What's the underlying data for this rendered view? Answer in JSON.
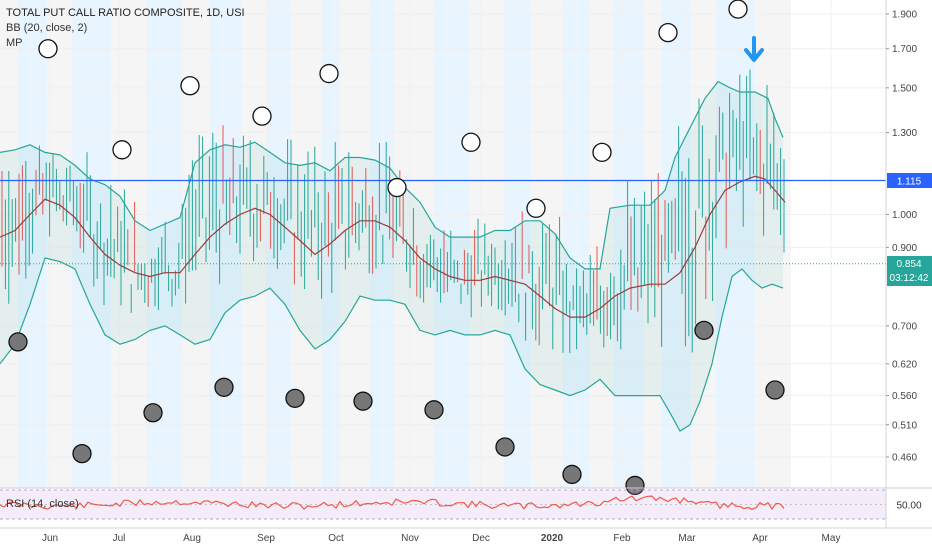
{
  "legend": {
    "title": "TOTAL PUT CALL RATIO COMPOSITE, 1D, USI",
    "bb": "BB (20, close, 2)",
    "mp": "MP"
  },
  "rsi_label": "RSI (14, close)",
  "colors": {
    "band": "#26a69a",
    "basis": "#9c3b3b",
    "bar_up": "#26a69a",
    "bar_down": "#ef5350",
    "hline": "#2962ff",
    "last_badge": "#26a69a",
    "rsi_line": "#f05a4a",
    "arrow": "#2196f3"
  },
  "badges": {
    "hline_value": "1.115",
    "last_value": "0.854",
    "countdown": "03:12:42",
    "rsi_value": "50.00"
  },
  "chart_data": {
    "type": "bar",
    "x_labels": [
      "Jun",
      "Jul",
      "Aug",
      "Sep",
      "Oct",
      "Nov",
      "Dec",
      "2020",
      "Feb",
      "Mar",
      "Apr",
      "May"
    ],
    "y_ticks": [
      "1.900",
      "1.700",
      "1.500",
      "1.300",
      "1.000",
      "0.900",
      "0.700",
      "0.620",
      "0.560",
      "0.510",
      "0.460"
    ],
    "y_log_scale": true,
    "series": [
      {
        "name": "BB upper",
        "values": [
          [
            0,
            1.22
          ],
          [
            15,
            1.23
          ],
          [
            30,
            1.25
          ],
          [
            45,
            1.22
          ],
          [
            60,
            1.21
          ],
          [
            75,
            1.17
          ],
          [
            90,
            1.12
          ],
          [
            105,
            1.1
          ],
          [
            120,
            1.06
          ],
          [
            135,
            0.98
          ],
          [
            150,
            0.95
          ],
          [
            165,
            0.97
          ],
          [
            180,
            0.99
          ],
          [
            195,
            1.18
          ],
          [
            210,
            1.23
          ],
          [
            225,
            1.25
          ],
          [
            240,
            1.24
          ],
          [
            255,
            1.26
          ],
          [
            270,
            1.22
          ],
          [
            285,
            1.18
          ],
          [
            300,
            1.17
          ],
          [
            315,
            1.18
          ],
          [
            330,
            1.15
          ],
          [
            345,
            1.2
          ],
          [
            360,
            1.2
          ],
          [
            375,
            1.19
          ],
          [
            390,
            1.16
          ],
          [
            405,
            1.09
          ],
          [
            420,
            1.04
          ],
          [
            435,
            0.96
          ],
          [
            450,
            0.93
          ],
          [
            465,
            0.93
          ],
          [
            480,
            0.93
          ],
          [
            495,
            0.95
          ],
          [
            510,
            0.95
          ],
          [
            525,
            0.98
          ],
          [
            540,
            0.98
          ],
          [
            555,
            0.94
          ],
          [
            570,
            0.87
          ],
          [
            585,
            0.84
          ],
          [
            600,
            0.84
          ],
          [
            610,
            1.02
          ],
          [
            630,
            1.03
          ],
          [
            650,
            1.03
          ],
          [
            665,
            1.08
          ],
          [
            675,
            1.2
          ],
          [
            690,
            1.32
          ],
          [
            705,
            1.45
          ],
          [
            718,
            1.53
          ],
          [
            730,
            1.5
          ],
          [
            740,
            1.48
          ],
          [
            755,
            1.48
          ],
          [
            768,
            1.45
          ],
          [
            775,
            1.36
          ],
          [
            783,
            1.28
          ]
        ]
      },
      {
        "name": "BB basis",
        "values": [
          [
            0,
            0.93
          ],
          [
            15,
            0.95
          ],
          [
            30,
            1.0
          ],
          [
            45,
            1.05
          ],
          [
            60,
            1.03
          ],
          [
            75,
            0.99
          ],
          [
            90,
            0.93
          ],
          [
            105,
            0.88
          ],
          [
            120,
            0.85
          ],
          [
            135,
            0.83
          ],
          [
            150,
            0.82
          ],
          [
            165,
            0.83
          ],
          [
            180,
            0.83
          ],
          [
            195,
            0.88
          ],
          [
            210,
            0.93
          ],
          [
            225,
            0.97
          ],
          [
            240,
            1.0
          ],
          [
            255,
            1.02
          ],
          [
            270,
            1.0
          ],
          [
            285,
            0.96
          ],
          [
            300,
            0.92
          ],
          [
            315,
            0.88
          ],
          [
            330,
            0.91
          ],
          [
            345,
            0.95
          ],
          [
            360,
            0.98
          ],
          [
            375,
            0.98
          ],
          [
            390,
            0.96
          ],
          [
            405,
            0.92
          ],
          [
            420,
            0.87
          ],
          [
            435,
            0.84
          ],
          [
            450,
            0.82
          ],
          [
            465,
            0.81
          ],
          [
            480,
            0.81
          ],
          [
            495,
            0.82
          ],
          [
            510,
            0.81
          ],
          [
            525,
            0.8
          ],
          [
            540,
            0.77
          ],
          [
            555,
            0.74
          ],
          [
            570,
            0.72
          ],
          [
            585,
            0.72
          ],
          [
            600,
            0.74
          ],
          [
            615,
            0.77
          ],
          [
            630,
            0.79
          ],
          [
            650,
            0.8
          ],
          [
            665,
            0.8
          ],
          [
            680,
            0.83
          ],
          [
            695,
            0.9
          ],
          [
            710,
            1.0
          ],
          [
            725,
            1.08
          ],
          [
            740,
            1.11
          ],
          [
            755,
            1.13
          ],
          [
            765,
            1.12
          ],
          [
            775,
            1.08
          ],
          [
            785,
            1.04
          ]
        ]
      },
      {
        "name": "BB lower",
        "values": [
          [
            0,
            0.62
          ],
          [
            15,
            0.66
          ],
          [
            30,
            0.75
          ],
          [
            45,
            0.87
          ],
          [
            60,
            0.86
          ],
          [
            75,
            0.84
          ],
          [
            90,
            0.75
          ],
          [
            105,
            0.68
          ],
          [
            120,
            0.66
          ],
          [
            135,
            0.67
          ],
          [
            150,
            0.69
          ],
          [
            165,
            0.7
          ],
          [
            180,
            0.68
          ],
          [
            195,
            0.66
          ],
          [
            210,
            0.67
          ],
          [
            225,
            0.73
          ],
          [
            240,
            0.76
          ],
          [
            255,
            0.77
          ],
          [
            270,
            0.79
          ],
          [
            285,
            0.75
          ],
          [
            300,
            0.69
          ],
          [
            315,
            0.65
          ],
          [
            330,
            0.67
          ],
          [
            345,
            0.71
          ],
          [
            360,
            0.77
          ],
          [
            375,
            0.76
          ],
          [
            390,
            0.76
          ],
          [
            405,
            0.75
          ],
          [
            420,
            0.69
          ],
          [
            435,
            0.68
          ],
          [
            450,
            0.69
          ],
          [
            465,
            0.68
          ],
          [
            480,
            0.68
          ],
          [
            495,
            0.69
          ],
          [
            510,
            0.68
          ],
          [
            525,
            0.61
          ],
          [
            540,
            0.58
          ],
          [
            555,
            0.57
          ],
          [
            570,
            0.56
          ],
          [
            585,
            0.57
          ],
          [
            600,
            0.59
          ],
          [
            615,
            0.56
          ],
          [
            630,
            0.56
          ],
          [
            645,
            0.56
          ],
          [
            660,
            0.56
          ],
          [
            670,
            0.53
          ],
          [
            680,
            0.5
          ],
          [
            690,
            0.51
          ],
          [
            700,
            0.55
          ],
          [
            712,
            0.62
          ],
          [
            722,
            0.72
          ],
          [
            732,
            0.82
          ],
          [
            742,
            0.84
          ],
          [
            752,
            0.81
          ],
          [
            762,
            0.79
          ],
          [
            772,
            0.8
          ],
          [
            783,
            0.79
          ]
        ]
      }
    ],
    "hline": 1.115,
    "last_value": 0.854,
    "circles_hollow": [
      [
        48,
        1.7
      ],
      [
        122,
        1.23
      ],
      [
        190,
        1.51
      ],
      [
        262,
        1.37
      ],
      [
        329,
        1.57
      ],
      [
        397,
        1.09
      ],
      [
        471,
        1.26
      ],
      [
        536,
        1.02
      ],
      [
        602,
        1.22
      ],
      [
        668,
        1.79
      ],
      [
        738,
        1.93
      ]
    ],
    "circles_filled": [
      [
        18,
        0.665
      ],
      [
        82,
        0.465
      ],
      [
        153,
        0.53
      ],
      [
        224,
        0.575
      ],
      [
        295,
        0.555
      ],
      [
        363,
        0.55
      ],
      [
        434,
        0.535
      ],
      [
        505,
        0.475
      ],
      [
        572,
        0.435
      ],
      [
        635,
        0.42
      ],
      [
        704,
        0.69
      ],
      [
        775,
        0.57
      ]
    ]
  }
}
